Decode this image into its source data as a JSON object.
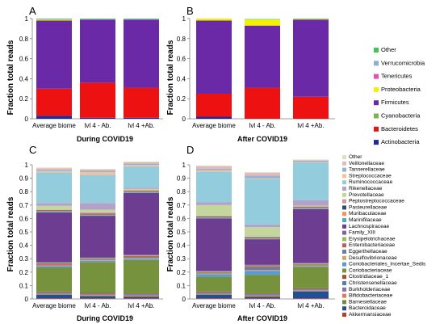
{
  "panels": [
    {
      "id": "A",
      "letter": "A",
      "ylabel": "Fraction total reads",
      "xlabel": "During COVID19"
    },
    {
      "id": "B",
      "letter": "B",
      "ylabel": "Fraction total reads",
      "xlabel": "After COVID19"
    },
    {
      "id": "C",
      "letter": "C",
      "ylabel": "Fraction total reads",
      "xlabel": "During COVID19"
    },
    {
      "id": "D",
      "letter": "D",
      "ylabel": "Fraction total reads",
      "xlabel": "After COVID19"
    }
  ],
  "chart_data": [
    {
      "panel": "A",
      "type": "bar",
      "stacked": true,
      "title": "",
      "xlabel": "During COVID19",
      "ylabel": "Fraction total reads",
      "categories": [
        "Average biome",
        "lvl 4  - Ab.",
        "lvl 4 +Ab."
      ],
      "ylim": [
        0,
        1
      ],
      "yticks": [
        0,
        0.2,
        0.4,
        0.6,
        0.8,
        1
      ],
      "series": [
        {
          "name": "Actinobacteria",
          "color": "#1a2aa0",
          "values": [
            0.03,
            0.01,
            0.01
          ]
        },
        {
          "name": "Bacteroidetes",
          "color": "#ee1111",
          "values": [
            0.27,
            0.35,
            0.3
          ]
        },
        {
          "name": "Cyanobacteria",
          "color": "#7ab648",
          "values": [
            0.0,
            0.0,
            0.0
          ]
        },
        {
          "name": "Firmicutes",
          "color": "#6a2aa8",
          "values": [
            0.68,
            0.63,
            0.68
          ]
        },
        {
          "name": "Proteobacteria",
          "color": "#f4f000",
          "values": [
            0.01,
            0.0,
            0.0
          ]
        },
        {
          "name": "Tenericutes",
          "color": "#e64fb4",
          "values": [
            0.0,
            0.0,
            0.0
          ]
        },
        {
          "name": "Verrucomicrobia",
          "color": "#8faed8",
          "values": [
            0.005,
            0.005,
            0.005
          ]
        },
        {
          "name": "Other",
          "color": "#3cc850",
          "values": [
            0.005,
            0.005,
            0.005
          ]
        }
      ]
    },
    {
      "panel": "B",
      "type": "bar",
      "stacked": true,
      "title": "",
      "xlabel": "After COVID19",
      "ylabel": "Fraction total reads",
      "categories": [
        "Average biome",
        "lvl 4  - Ab.",
        "lvl 4 +Ab."
      ],
      "ylim": [
        0,
        1
      ],
      "yticks": [
        0,
        0.2,
        0.4,
        0.6,
        0.8,
        1
      ],
      "series": [
        {
          "name": "Actinobacteria",
          "color": "#1a2aa0",
          "values": [
            0.02,
            0.0,
            0.0
          ]
        },
        {
          "name": "Bacteroidetes",
          "color": "#ee1111",
          "values": [
            0.23,
            0.31,
            0.22
          ]
        },
        {
          "name": "Cyanobacteria",
          "color": "#7ab648",
          "values": [
            0.0,
            0.0,
            0.0
          ]
        },
        {
          "name": "Firmicutes",
          "color": "#6a2aa8",
          "values": [
            0.73,
            0.62,
            0.77
          ]
        },
        {
          "name": "Proteobacteria",
          "color": "#f4f000",
          "values": [
            0.02,
            0.06,
            0.005
          ]
        },
        {
          "name": "Tenericutes",
          "color": "#e64fb4",
          "values": [
            0.0,
            0.0,
            0.0
          ]
        },
        {
          "name": "Verrucomicrobia",
          "color": "#8faed8",
          "values": [
            0.0,
            0.0,
            0.0
          ]
        },
        {
          "name": "Other",
          "color": "#3cc850",
          "values": [
            0.0,
            0.005,
            0.005
          ]
        }
      ]
    },
    {
      "panel": "C",
      "type": "bar",
      "stacked": true,
      "title": "",
      "xlabel": "During COVID19",
      "ylabel": "Fraction total reads",
      "categories": [
        "Average biome",
        "lvl 4  - Ab.",
        "lvl 4 +Ab."
      ],
      "ylim": [
        0,
        1
      ],
      "yticks": [
        0,
        0.1,
        0.2,
        0.3,
        0.4,
        0.5,
        0.6,
        0.7,
        0.8,
        0.9,
        1
      ],
      "series": [
        {
          "name": "Akkermansiaceae",
          "color": "#c0392b",
          "values": [
            0.005,
            0.005,
            0.005
          ]
        },
        {
          "name": "Bacteroidaceae",
          "color": "#1f4e9b",
          "values": [
            0.025,
            0.015,
            0.01
          ]
        },
        {
          "name": "Barnesiellaceae",
          "color": "#6b8e3a",
          "values": [
            0.005,
            0.005,
            0.005
          ]
        },
        {
          "name": "Bifidobacteriaceae",
          "color": "#e07a5f",
          "values": [
            0.005,
            0.005,
            0.005
          ]
        },
        {
          "name": "Burkholderiaceae",
          "color": "#8e6fa8",
          "values": [
            0.005,
            0.005,
            0.005
          ]
        },
        {
          "name": "Christensenellaceae",
          "color": "#4f7fb5",
          "values": [
            0.005,
            0.005,
            0.005
          ]
        },
        {
          "name": "Clostridiaceae_1",
          "color": "#a0522d",
          "values": [
            0.005,
            0.005,
            0.005
          ]
        },
        {
          "name": "Coriobacteriaceae",
          "color": "#76923c",
          "values": [
            0.18,
            0.23,
            0.25
          ]
        },
        {
          "name": "Coriobacteriales_Incertae_Sedis",
          "color": "#5b9bd5",
          "values": [
            0.01,
            0.01,
            0.01
          ]
        },
        {
          "name": "Desulfovibrionaceae",
          "color": "#d6a36b",
          "values": [
            0.005,
            0.005,
            0.005
          ]
        },
        {
          "name": "Eggerthellaceae",
          "color": "#6a7fa8",
          "values": [
            0.005,
            0.005,
            0.005
          ]
        },
        {
          "name": "Enterobacteriaceae",
          "color": "#c85c5c",
          "values": [
            0.01,
            0.005,
            0.01
          ]
        },
        {
          "name": "Erysipelotrichaceae",
          "color": "#9bbb59",
          "values": [
            0.005,
            0.005,
            0.005
          ]
        },
        {
          "name": "Family_XIII",
          "color": "#8064a2",
          "values": [
            0.005,
            0.005,
            0.005
          ]
        },
        {
          "name": "Lachnospiraceae",
          "color": "#6c3d91",
          "values": [
            0.37,
            0.31,
            0.46
          ]
        },
        {
          "name": "Marinifilaceae",
          "color": "#4bacc6",
          "values": [
            0.005,
            0.005,
            0.005
          ]
        },
        {
          "name": "Muribaculaceae",
          "color": "#f79646",
          "values": [
            0.005,
            0.005,
            0.005
          ]
        },
        {
          "name": "Pasteurellaceae",
          "color": "#2c4d75",
          "values": [
            0.005,
            0.005,
            0.005
          ]
        },
        {
          "name": "Peptostreptococcaceae",
          "color": "#d99694",
          "values": [
            0.005,
            0.01,
            0.005
          ]
        },
        {
          "name": "Prevotellaceae",
          "color": "#c3d69b",
          "values": [
            0.03,
            0.02,
            0.01
          ]
        },
        {
          "name": "Rikenellaceae",
          "color": "#b3a2c7",
          "values": [
            0.02,
            0.05,
            0.01
          ]
        },
        {
          "name": "Ruminococcaceae",
          "color": "#93cddd",
          "values": [
            0.23,
            0.21,
            0.16
          ]
        },
        {
          "name": "Streptococcaceae",
          "color": "#fac090",
          "values": [
            0.01,
            0.02,
            0.01
          ]
        },
        {
          "name": "Tannerellaceae",
          "color": "#95b3d7",
          "values": [
            0.01,
            0.01,
            0.01
          ]
        },
        {
          "name": "Veillonellaceae",
          "color": "#e6b9b8",
          "values": [
            0.01,
            0.01,
            0.01
          ]
        },
        {
          "name": "Other",
          "color": "#d7e4bd",
          "values": [
            0.005,
            0.005,
            0.005
          ]
        }
      ]
    },
    {
      "panel": "D",
      "type": "bar",
      "stacked": true,
      "title": "",
      "xlabel": "After COVID19",
      "ylabel": "Fraction total reads",
      "categories": [
        "Average biome",
        "lvl 4  - Ab.",
        "lvl 4 +Ab."
      ],
      "ylim": [
        0,
        1
      ],
      "yticks": [
        0,
        0.1,
        0.2,
        0.3,
        0.4,
        0.5,
        0.6,
        0.7,
        0.8,
        0.9,
        1
      ],
      "series": [
        {
          "name": "Akkermansiaceae",
          "color": "#c0392b",
          "values": [
            0.005,
            0.005,
            0.005
          ]
        },
        {
          "name": "Bacteroidaceae",
          "color": "#1f4e9b",
          "values": [
            0.025,
            0.01,
            0.05
          ]
        },
        {
          "name": "Barnesiellaceae",
          "color": "#6b8e3a",
          "values": [
            0.005,
            0.005,
            0.005
          ]
        },
        {
          "name": "Bifidobacteriaceae",
          "color": "#e07a5f",
          "values": [
            0.005,
            0.005,
            0.005
          ]
        },
        {
          "name": "Burkholderiaceae",
          "color": "#8e6fa8",
          "values": [
            0.005,
            0.005,
            0.005
          ]
        },
        {
          "name": "Christensenellaceae",
          "color": "#4f7fb5",
          "values": [
            0.005,
            0.005,
            0.005
          ]
        },
        {
          "name": "Clostridiaceae_1",
          "color": "#a0522d",
          "values": [
            0.005,
            0.005,
            0.005
          ]
        },
        {
          "name": "Coriobacteriaceae",
          "color": "#76923c",
          "values": [
            0.11,
            0.14,
            0.16
          ]
        },
        {
          "name": "Coriobacteriales_Incertae_Sedis",
          "color": "#5b9bd5",
          "values": [
            0.02,
            0.03,
            0.005
          ]
        },
        {
          "name": "Desulfovibrionaceae",
          "color": "#d6a36b",
          "values": [
            0.005,
            0.005,
            0.005
          ]
        },
        {
          "name": "Eggerthellaceae",
          "color": "#6a7fa8",
          "values": [
            0.005,
            0.02,
            0.005
          ]
        },
        {
          "name": "Enterobacteriaceae",
          "color": "#c85c5c",
          "values": [
            0.005,
            0.01,
            0.005
          ]
        },
        {
          "name": "Erysipelotrichaceae",
          "color": "#9bbb59",
          "values": [
            0.005,
            0.005,
            0.005
          ]
        },
        {
          "name": "Family_XIII",
          "color": "#8064a2",
          "values": [
            0.005,
            0.005,
            0.005
          ]
        },
        {
          "name": "Lachnospiraceae",
          "color": "#6c3d91",
          "values": [
            0.39,
            0.19,
            0.4
          ]
        },
        {
          "name": "Marinifilaceae",
          "color": "#4bacc6",
          "values": [
            0.005,
            0.005,
            0.005
          ]
        },
        {
          "name": "Muribaculaceae",
          "color": "#f79646",
          "values": [
            0.005,
            0.005,
            0.005
          ]
        },
        {
          "name": "Pasteurellaceae",
          "color": "#2c4d75",
          "values": [
            0.005,
            0.005,
            0.005
          ]
        },
        {
          "name": "Peptostreptococcaceae",
          "color": "#d99694",
          "values": [
            0.005,
            0.005,
            0.005
          ]
        },
        {
          "name": "Prevotellaceae",
          "color": "#c3d69b",
          "values": [
            0.08,
            0.07,
            0.005
          ]
        },
        {
          "name": "Rikenellaceae",
          "color": "#b3a2c7",
          "values": [
            0.02,
            0.02,
            0.04
          ]
        },
        {
          "name": "Ruminococcaceae",
          "color": "#93cddd",
          "values": [
            0.23,
            0.34,
            0.28
          ]
        },
        {
          "name": "Streptococcaceae",
          "color": "#fac090",
          "values": [
            0.01,
            0.005,
            0.005
          ]
        },
        {
          "name": "Tannerellaceae",
          "color": "#95b3d7",
          "values": [
            0.01,
            0.02,
            0.01
          ]
        },
        {
          "name": "Veillonellaceae",
          "color": "#e6b9b8",
          "values": [
            0.02,
            0.02,
            0.005
          ]
        },
        {
          "name": "Other",
          "color": "#d7e4bd",
          "values": [
            0.005,
            0.005,
            0.005
          ]
        }
      ]
    }
  ],
  "legend_top": {
    "placement": "right",
    "entries": [
      {
        "name": "Other",
        "color": "#3cc850"
      },
      {
        "name": "Verrucomicrobia",
        "color": "#8faed8"
      },
      {
        "name": "Tenericutes",
        "color": "#e64fb4"
      },
      {
        "name": "Proteobacteria",
        "color": "#f4f000"
      },
      {
        "name": "Firmicutes",
        "color": "#6a2aa8"
      },
      {
        "name": "Cyanobacteria",
        "color": "#7ab648"
      },
      {
        "name": "Bacteroidetes",
        "color": "#ee1111"
      },
      {
        "name": "Actinobacteria",
        "color": "#1a2aa0"
      }
    ]
  },
  "legend_bottom": {
    "placement": "right",
    "entries": [
      {
        "name": "Other",
        "color": "#d7e4bd"
      },
      {
        "name": "Veillonellaceae",
        "color": "#e6b9b8"
      },
      {
        "name": "Tannerellaceae",
        "color": "#95b3d7"
      },
      {
        "name": "Streptococcaceae",
        "color": "#fac090"
      },
      {
        "name": "Ruminococcaceae",
        "color": "#93cddd"
      },
      {
        "name": "Rikenellaceae",
        "color": "#b3a2c7"
      },
      {
        "name": "Prevotellaceae",
        "color": "#c3d69b"
      },
      {
        "name": "Peptostreptococcaceae",
        "color": "#d99694"
      },
      {
        "name": "Pasteurellaceae",
        "color": "#2c4d75"
      },
      {
        "name": "Muribaculaceae",
        "color": "#f79646"
      },
      {
        "name": "Marinifilaceae",
        "color": "#4bacc6"
      },
      {
        "name": "Lachnospiraceae",
        "color": "#6c3d91"
      },
      {
        "name": "Family_XIII",
        "color": "#8064a2"
      },
      {
        "name": "Erysipelotrichaceae",
        "color": "#9bbb59"
      },
      {
        "name": "Enterobacteriaceae",
        "color": "#c85c5c"
      },
      {
        "name": "Eggerthellaceae",
        "color": "#6a7fa8"
      },
      {
        "name": "Desulfovibrionaceae",
        "color": "#d6a36b"
      },
      {
        "name": "Coriobacteriales_Incertae_Sedis",
        "color": "#5b9bd5"
      },
      {
        "name": "Coriobacteriaceae",
        "color": "#76923c"
      },
      {
        "name": "Clostridiaceae_1",
        "color": "#a0522d"
      },
      {
        "name": "Christensenellaceae",
        "color": "#4f7fb5"
      },
      {
        "name": "Burkholderiaceae",
        "color": "#8e6fa8"
      },
      {
        "name": "Bifidobacteriaceae",
        "color": "#e07a5f"
      },
      {
        "name": "Barnesiellaceae",
        "color": "#6b8e3a"
      },
      {
        "name": "Bacteroidaceae",
        "color": "#1f4e9b"
      },
      {
        "name": "Akkermansiaceae",
        "color": "#c0392b"
      }
    ]
  }
}
